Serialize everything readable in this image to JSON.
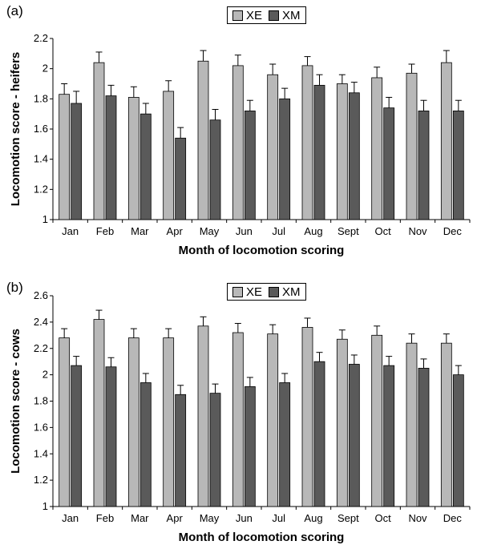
{
  "chart_data": [
    {
      "type": "bar",
      "panel_label": "(a)",
      "categories": [
        "Jan",
        "Feb",
        "Mar",
        "Apr",
        "May",
        "Jun",
        "Jul",
        "Aug",
        "Sept",
        "Oct",
        "Nov",
        "Dec"
      ],
      "series": [
        {
          "name": "XE",
          "color": "#b8b8b8",
          "values": [
            1.83,
            2.04,
            1.81,
            1.85,
            2.05,
            2.02,
            1.96,
            2.02,
            1.9,
            1.94,
            1.97,
            2.04
          ],
          "errors": [
            0.07,
            0.07,
            0.07,
            0.07,
            0.07,
            0.07,
            0.07,
            0.06,
            0.06,
            0.07,
            0.06,
            0.08
          ]
        },
        {
          "name": "XM",
          "color": "#5a5a5a",
          "values": [
            1.77,
            1.82,
            1.7,
            1.54,
            1.66,
            1.72,
            1.8,
            1.89,
            1.84,
            1.74,
            1.72,
            1.72
          ],
          "errors": [
            0.08,
            0.07,
            0.07,
            0.07,
            0.07,
            0.07,
            0.07,
            0.07,
            0.07,
            0.07,
            0.07,
            0.07
          ]
        }
      ],
      "xlabel": "Month of locomotion scoring",
      "ylabel": "Locomotion score - heifers",
      "ylim": [
        1,
        2.2
      ],
      "yticks": [
        "1",
        "1.2",
        "1.4",
        "1.6",
        "1.8",
        "2",
        "2.2"
      ],
      "legend": "top-center",
      "grid": false
    },
    {
      "type": "bar",
      "panel_label": "(b)",
      "categories": [
        "Jan",
        "Feb",
        "Mar",
        "Apr",
        "May",
        "Jun",
        "Jul",
        "Aug",
        "Sept",
        "Oct",
        "Nov",
        "Dec"
      ],
      "series": [
        {
          "name": "XE",
          "color": "#b8b8b8",
          "values": [
            2.28,
            2.42,
            2.28,
            2.28,
            2.37,
            2.32,
            2.31,
            2.36,
            2.27,
            2.3,
            2.24,
            2.24
          ],
          "errors": [
            0.07,
            0.07,
            0.07,
            0.07,
            0.07,
            0.07,
            0.07,
            0.07,
            0.07,
            0.07,
            0.07,
            0.07
          ]
        },
        {
          "name": "XM",
          "color": "#5a5a5a",
          "values": [
            2.07,
            2.06,
            1.94,
            1.85,
            1.86,
            1.91,
            1.94,
            2.1,
            2.08,
            2.07,
            2.05,
            2.0
          ],
          "errors": [
            0.07,
            0.07,
            0.07,
            0.07,
            0.07,
            0.07,
            0.07,
            0.07,
            0.07,
            0.07,
            0.07,
            0.07
          ]
        }
      ],
      "xlabel": "Month of locomotion scoring",
      "ylabel": "Locomotion score - cows",
      "ylim": [
        1,
        2.6
      ],
      "yticks": [
        "1",
        "1.2",
        "1.4",
        "1.6",
        "1.8",
        "2",
        "2.2",
        "2.4",
        "2.6"
      ],
      "legend": "top-center",
      "grid": false
    }
  ]
}
